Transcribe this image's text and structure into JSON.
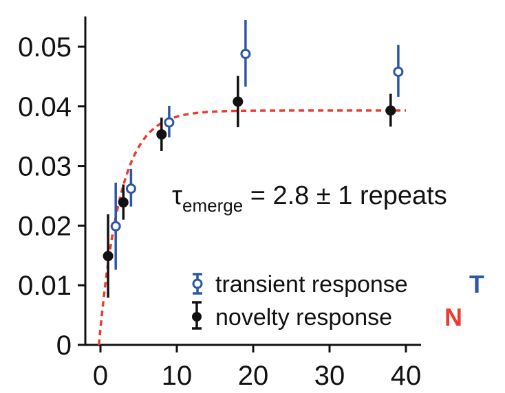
{
  "chart_data": {
    "type": "scatter",
    "title": "",
    "xlabel": "",
    "ylabel": "",
    "xlim": [
      -2,
      42
    ],
    "ylim": [
      0,
      0.055
    ],
    "x_ticks": [
      0,
      10,
      20,
      30,
      40
    ],
    "x_tick_labels": [
      "0",
      "10",
      "20",
      "30",
      "40"
    ],
    "y_ticks": [
      0,
      0.01,
      0.02,
      0.03,
      0.04,
      0.05
    ],
    "y_tick_labels": [
      "0",
      "0.01",
      "0.02",
      "0.03",
      "0.04",
      "0.05"
    ],
    "grid": false,
    "legend_position": "bottom-right",
    "series": [
      {
        "name": "transient response",
        "symbol": "T",
        "color": "#2E56A6",
        "marker": "open-circle",
        "points": [
          {
            "x": 2,
            "y": 0.0199,
            "lo": 0.0126,
            "hi": 0.0272
          },
          {
            "x": 4,
            "y": 0.0262,
            "lo": 0.0232,
            "hi": 0.0295
          },
          {
            "x": 9,
            "y": 0.0373,
            "lo": 0.0348,
            "hi": 0.0401
          },
          {
            "x": 19,
            "y": 0.0488,
            "lo": 0.0433,
            "hi": 0.0545
          },
          {
            "x": 39,
            "y": 0.0458,
            "lo": 0.0416,
            "hi": 0.0503
          }
        ]
      },
      {
        "name": "novelty response",
        "symbol": "N",
        "color": "#111111",
        "marker": "filled-circle",
        "points": [
          {
            "x": 1,
            "y": 0.0149,
            "lo": 0.0079,
            "hi": 0.0219
          },
          {
            "x": 3,
            "y": 0.0239,
            "lo": 0.021,
            "hi": 0.0269
          },
          {
            "x": 8,
            "y": 0.0353,
            "lo": 0.0325,
            "hi": 0.0381
          },
          {
            "x": 18,
            "y": 0.0408,
            "lo": 0.0365,
            "hi": 0.0451
          },
          {
            "x": 38,
            "y": 0.0393,
            "lo": 0.0366,
            "hi": 0.0421
          }
        ]
      }
    ],
    "fit": {
      "type": "exponential",
      "color": "#EE3B2E",
      "style": "dashed",
      "asymptote": 0.0393,
      "tau": 2.8,
      "x_start": -0.2,
      "x_end": 40
    },
    "symbol_colors": {
      "T": "#2E56A6",
      "N": "#EE3B2E"
    },
    "annotation": {
      "tau_symbol": "τ",
      "tau_subscript": "emerge",
      "tau_value_text": " = 2.8 ± 1 repeats"
    }
  }
}
